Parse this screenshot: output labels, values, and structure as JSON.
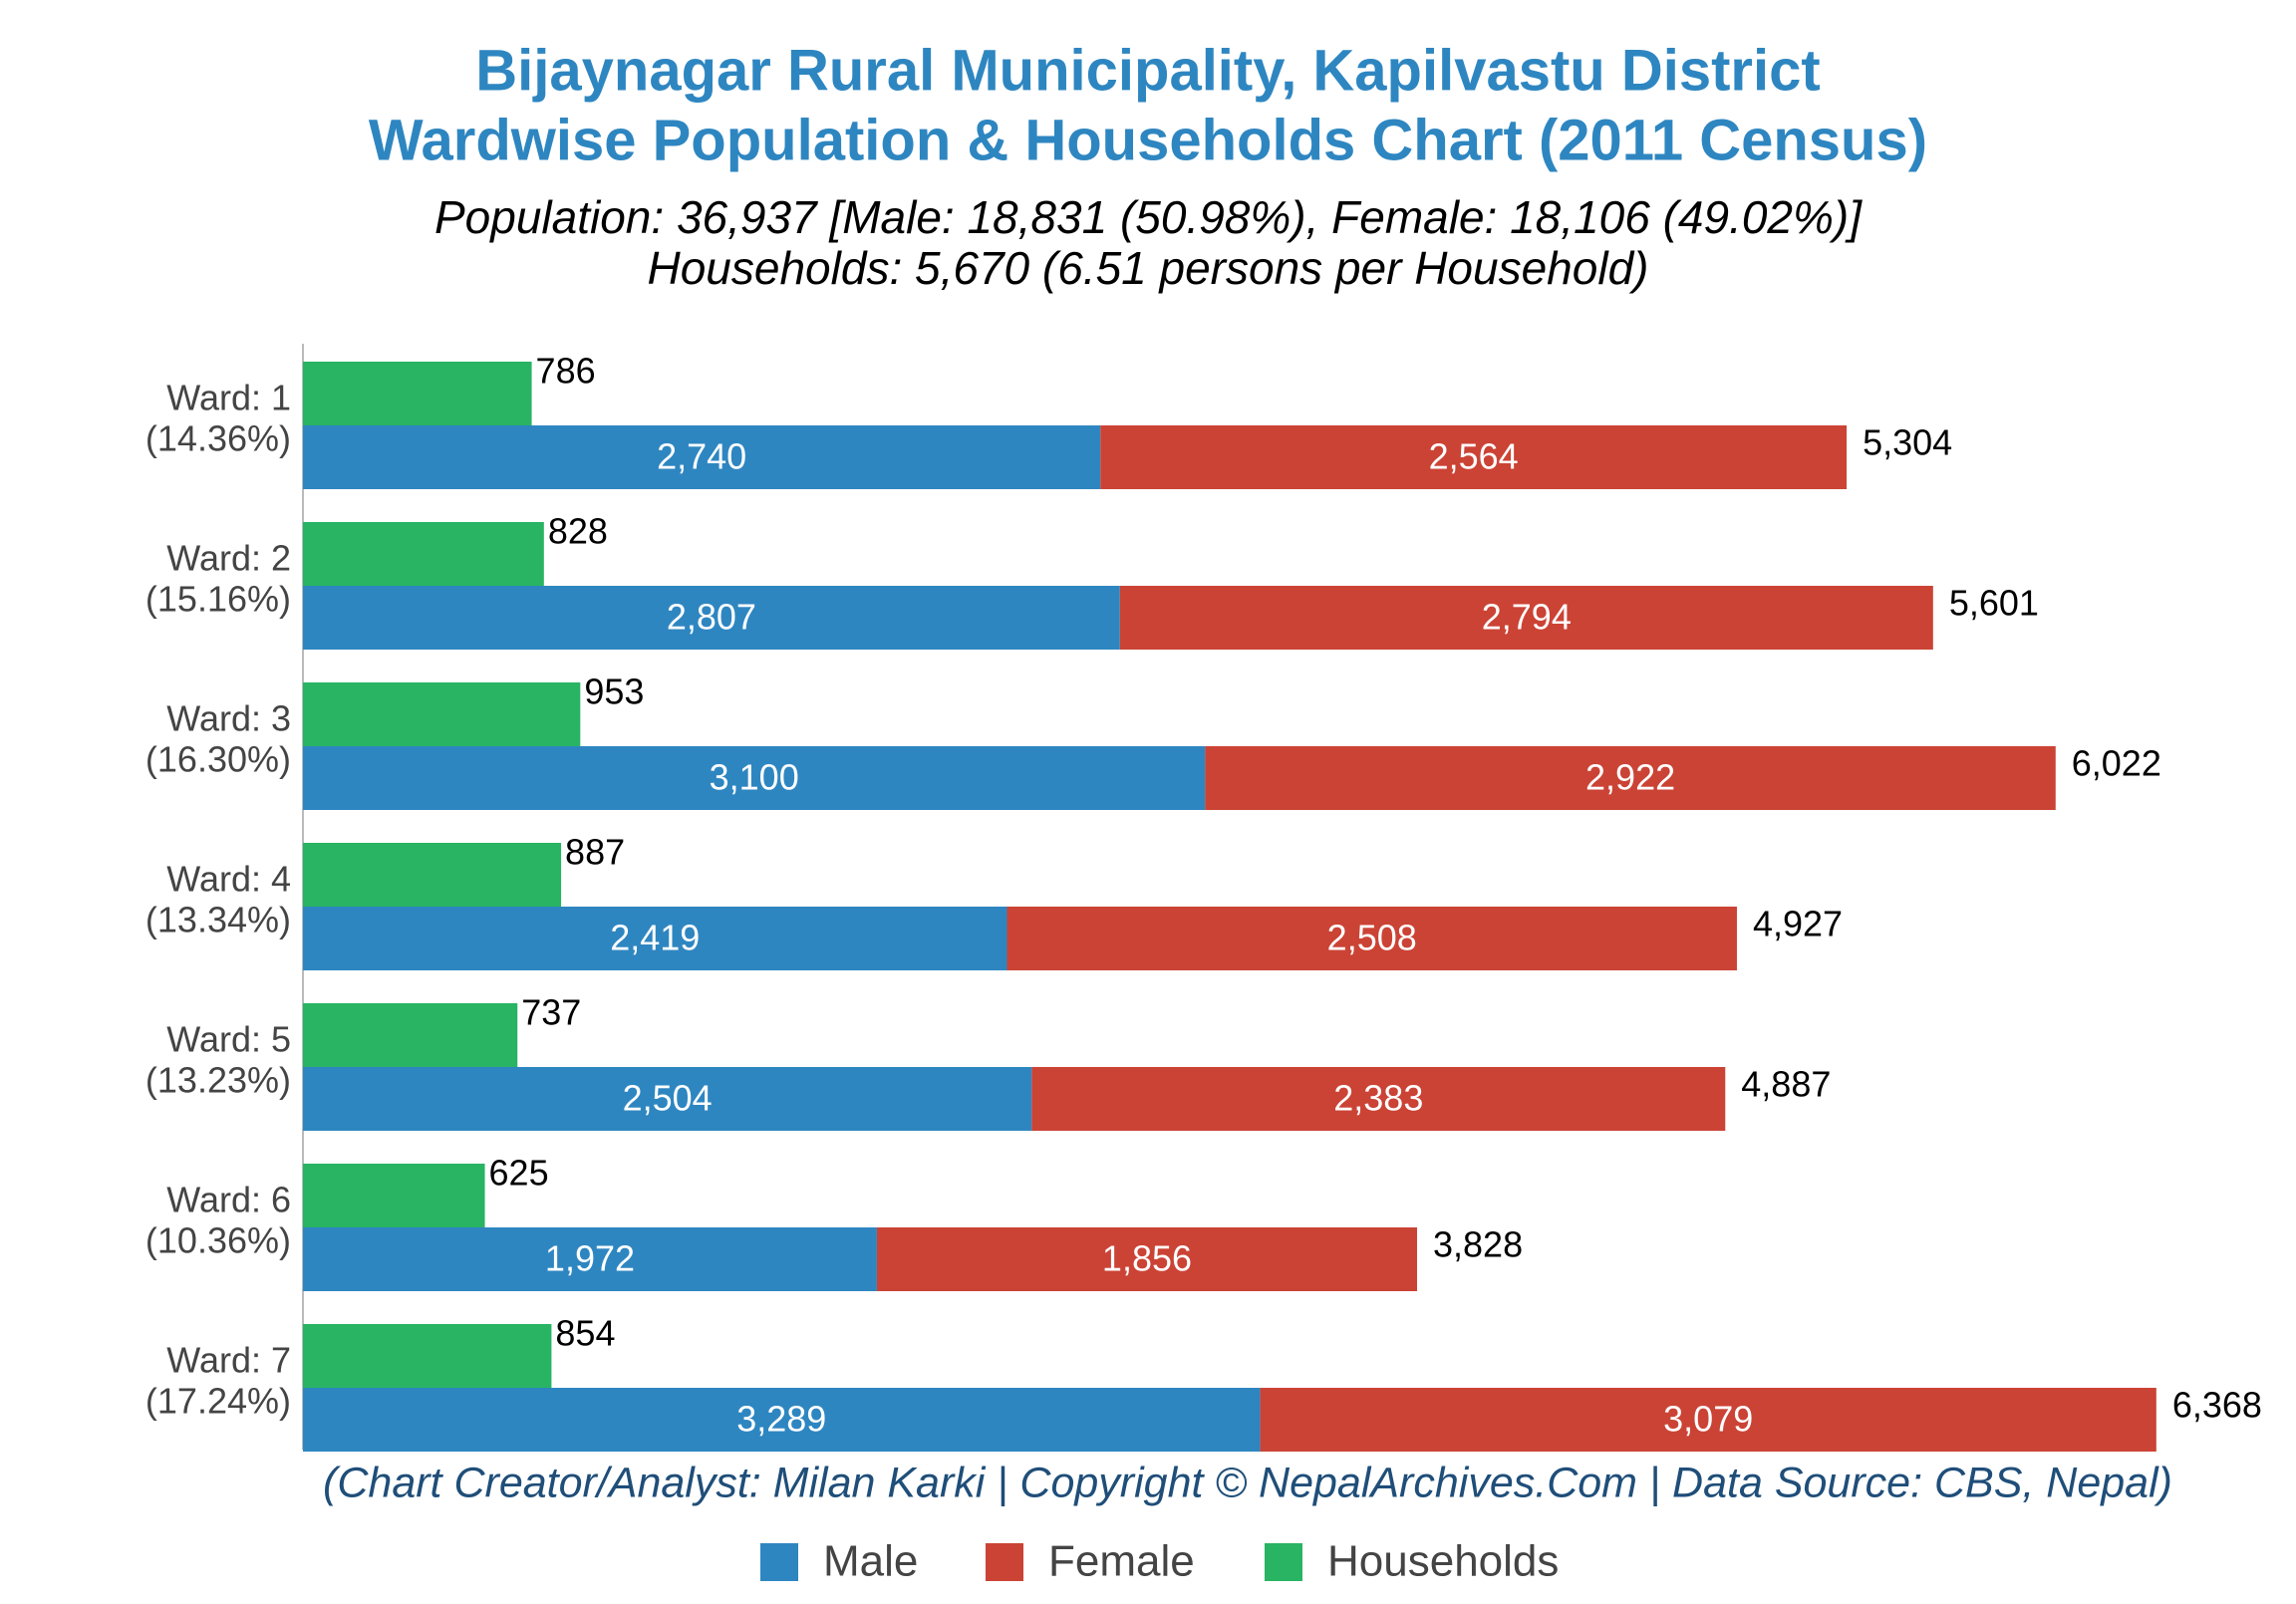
{
  "chart_data": {
    "type": "bar",
    "orientation": "horizontal",
    "title": [
      "Bijaynagar Rural Municipality, Kapilvastu District",
      "Wardwise Population & Households Chart (2011 Census)"
    ],
    "subtitle": [
      "Population: 36,937 [Male: 18,831 (50.98%), Female: 18,106 (49.02%)]",
      "Households: 5,670 (6.51 persons per Household)"
    ],
    "footer": "(Chart Creator/Analyst: Milan Karki | Copyright © NepalArchives.Com | Data Source: CBS, Nepal)",
    "categories": [
      "Ward: 1",
      "Ward: 2",
      "Ward: 3",
      "Ward: 4",
      "Ward: 5",
      "Ward: 6",
      "Ward: 7"
    ],
    "category_shares": [
      "(14.36%)",
      "(15.16%)",
      "(16.30%)",
      "(13.34%)",
      "(13.23%)",
      "(10.36%)",
      "(17.24%)"
    ],
    "series": [
      {
        "name": "Male",
        "color": "#2e86c1",
        "row": 1,
        "values": [
          2740,
          2807,
          3100,
          2419,
          2504,
          1972,
          3289
        ],
        "value_labels": [
          "2,740",
          "2,807",
          "3,100",
          "2,419",
          "2,504",
          "1,972",
          "3,289"
        ]
      },
      {
        "name": "Female",
        "color": "#cb4335",
        "row": 1,
        "values": [
          2564,
          2794,
          2922,
          2508,
          2383,
          1856,
          3079
        ],
        "value_labels": [
          "2,564",
          "2,794",
          "2,922",
          "2,508",
          "2,383",
          "1,856",
          "3,079"
        ]
      },
      {
        "name": "Households",
        "color": "#28b463",
        "row": 0,
        "values": [
          786,
          828,
          953,
          887,
          737,
          625,
          854
        ],
        "value_labels": [
          "786",
          "828",
          "953",
          "887",
          "737",
          "625",
          "854"
        ]
      }
    ],
    "total_labels": [
      "5,304",
      "5,601",
      "6,022",
      "4,927",
      "4,887",
      "3,828",
      "6,368"
    ],
    "xlim": [
      0,
      6800
    ],
    "legend": "bottom"
  }
}
